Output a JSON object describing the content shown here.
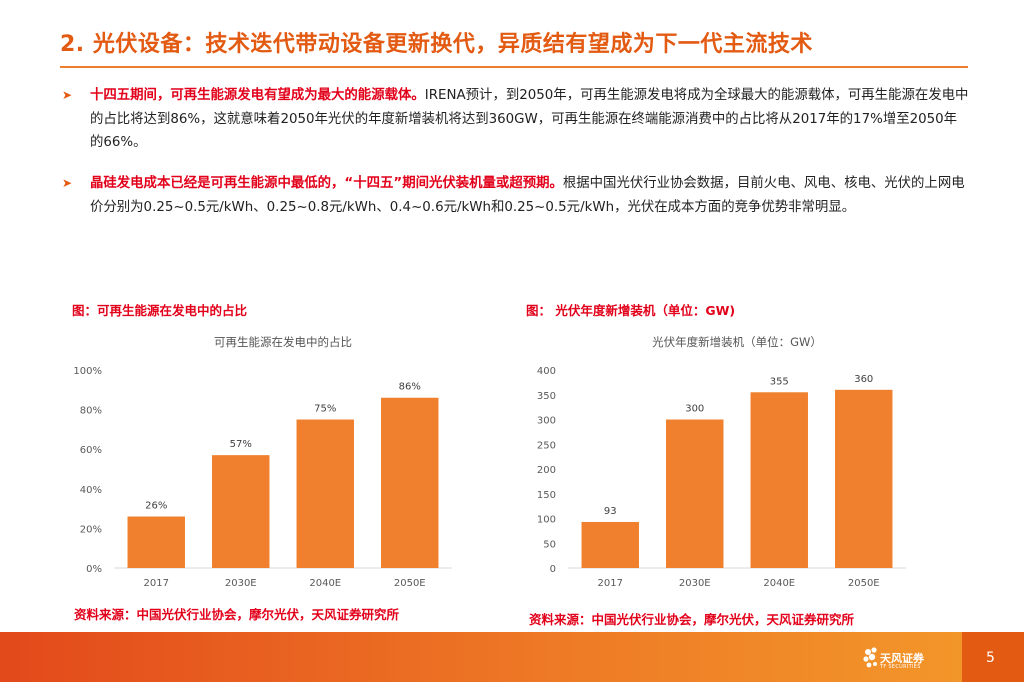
{
  "title": "2. 光伏设备：技术迭代带动设备更新换代，异质结有望成为下一代主流技术",
  "bullets": [
    {
      "highlight": "十四五期间，可再生能源发电有望成为最大的能源载体。",
      "body": "IRENA预计，到2050年，可再生能源发电将成为全球最大的能源载体，可再生能源在发电中的占比将达到86%，这就意味着2050年光伏的年度新增装机将达到360GW，可再生能源在终端能源消费中的占比将从2017年的17%增至2050年的66%。"
    },
    {
      "highlight": "晶硅发电成本已经是可再生能源中最低的，“十四五”期间光伏装机量或超预期。",
      "body": "根据中国光伏行业协会数据，目前火电、风电、核电、光伏的上网电价分别为0.25~0.5元/kWh、0.25~0.8元/kWh、0.4~0.6元/kWh和0.25~0.5元/kWh，光伏在成本方面的竞争优势非常明显。"
    }
  ],
  "figures": [
    {
      "label": "图：可再生能源在发电中的占比",
      "source": "资料来源：中国光伏行业协会，摩尔光伏，天风证券研究所"
    },
    {
      "label": "图： 光伏年度新增装机（单位：GW)",
      "source": "资料来源：中国光伏行业协会，摩尔光伏，天风证券研究所"
    }
  ],
  "chart_data": [
    {
      "type": "bar",
      "title": "可再生能源在发电中的占比",
      "categories": [
        "2017",
        "2030E",
        "2040E",
        "2050E"
      ],
      "values": [
        26,
        57,
        75,
        86
      ],
      "data_labels": [
        "26%",
        "57%",
        "75%",
        "86%"
      ],
      "ylim": [
        0,
        100
      ],
      "yticks": [
        0,
        20,
        40,
        60,
        80,
        100
      ],
      "ytick_labels": [
        "0%",
        "20%",
        "40%",
        "60%",
        "80%",
        "100%"
      ],
      "grid": false,
      "bar_color": "#f0802e"
    },
    {
      "type": "bar",
      "title": "光伏年度新增装机（单位：GW）",
      "categories": [
        "2017",
        "2030E",
        "2040E",
        "2050E"
      ],
      "values": [
        93,
        300,
        355,
        360
      ],
      "data_labels": [
        "93",
        "300",
        "355",
        "360"
      ],
      "ylim": [
        0,
        400
      ],
      "yticks": [
        0,
        50,
        100,
        150,
        200,
        250,
        300,
        350,
        400
      ],
      "ytick_labels": [
        "0",
        "50",
        "100",
        "150",
        "200",
        "250",
        "300",
        "350",
        "400"
      ],
      "grid": false,
      "bar_color": "#f0802e"
    }
  ],
  "footer": {
    "brand": "天风证券",
    "brand_en": "TF SECURITIES",
    "page_number": "5"
  },
  "colors": {
    "accent": "#e35a12",
    "highlight": "#e2001a",
    "bar": "#f0802e"
  }
}
